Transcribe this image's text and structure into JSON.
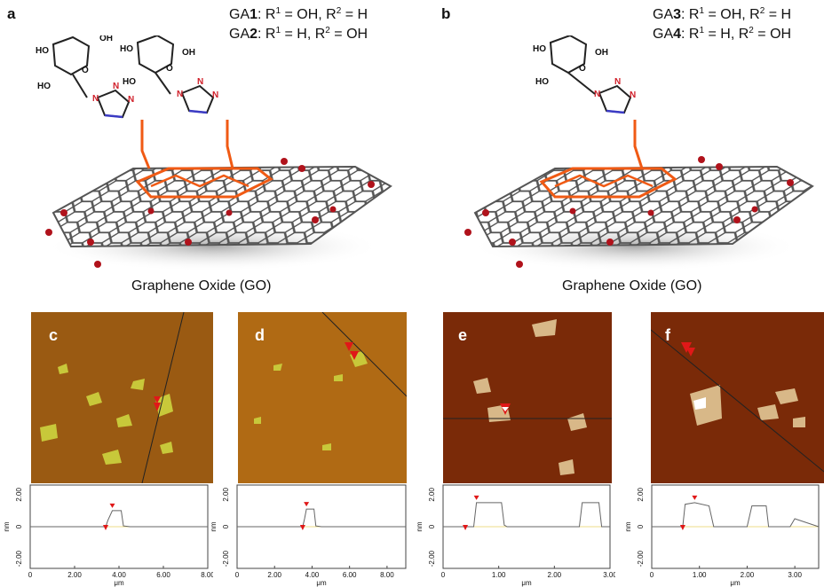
{
  "panels": {
    "a": {
      "letter": "a",
      "formula_1": {
        "prefix": "GA",
        "num": "1",
        "text": ": R",
        "s1": "1",
        "mid": " = OH, R",
        "s2": "2",
        "end": " = H"
      },
      "formula_2": {
        "prefix": "GA",
        "num": "2",
        "text": ": R",
        "s1": "1",
        "mid": " = H, R",
        "s2": "2",
        "end": " = OH"
      },
      "go_label": "Graphene Oxide (GO)"
    },
    "b": {
      "letter": "b",
      "formula_1": {
        "prefix": "GA",
        "num": "3",
        "text": ": R",
        "s1": "1",
        "mid": " = OH, R",
        "s2": "2",
        "end": " = H"
      },
      "formula_2": {
        "prefix": "GA",
        "num": "4",
        "text": ": R",
        "s1": "1",
        "mid": " = H, R",
        "s2": "2",
        "end": " = OH"
      },
      "go_label": "Graphene Oxide (GO)"
    }
  },
  "chem_labels": {
    "ho": "HO",
    "oh": "OH",
    "o": "O",
    "n": "N",
    "r1": "R",
    "r1sup": "1",
    "r2": "R",
    "r2sup": "2"
  },
  "afm_panels": [
    {
      "letter": "c",
      "bg": "#9a5a12",
      "flake": "#c8c83a"
    },
    {
      "letter": "d",
      "bg": "#b06a14",
      "flake": "#c8c83a"
    },
    {
      "letter": "e",
      "bg": "#7a2a08",
      "flake": "#d8b888"
    },
    {
      "letter": "f",
      "bg": "#7a2a08",
      "flake": "#d8b888"
    }
  ],
  "chart_data": [
    {
      "type": "line",
      "panel": "c",
      "ylabel": "nm",
      "xlabel": "μm",
      "yticks": [
        "2.00",
        "0",
        "-2.00"
      ],
      "xticks": [
        "0",
        "2.00",
        "4.00",
        "6.00",
        "8.00"
      ],
      "xlim": [
        0,
        8
      ],
      "ylim": [
        -2.6,
        2.6
      ],
      "x": [
        0,
        1,
        2,
        3,
        3.4,
        3.5,
        3.7,
        4.1,
        4.2,
        4.5,
        5,
        6,
        7,
        8
      ],
      "y": [
        0,
        0,
        0,
        0,
        0,
        0.4,
        1.0,
        1.0,
        0.05,
        0,
        0,
        0,
        0,
        0
      ]
    },
    {
      "type": "line",
      "panel": "d",
      "ylabel": "nm",
      "xlabel": "μm",
      "yticks": [
        "2.00",
        "0",
        "-2.00"
      ],
      "xticks": [
        "0",
        "2.00",
        "4.00",
        "6.00",
        "8.00"
      ],
      "xlim": [
        0,
        9
      ],
      "ylim": [
        -2.6,
        2.6
      ],
      "x": [
        0,
        1,
        2,
        3,
        3.5,
        3.6,
        3.7,
        4.1,
        4.2,
        4.5,
        5,
        6,
        7,
        8,
        9
      ],
      "y": [
        0,
        0,
        0,
        0,
        0,
        0.5,
        1.1,
        1.1,
        0.05,
        0,
        0,
        0,
        0,
        0,
        0
      ]
    },
    {
      "type": "line",
      "panel": "e",
      "ylabel": "nm",
      "xlabel": "μm",
      "yticks": [
        "2.00",
        "0",
        "-2.00"
      ],
      "xticks": [
        "0",
        "1.00",
        "2.00",
        "3.00"
      ],
      "xlim": [
        0,
        3
      ],
      "ylim": [
        -2.6,
        2.6
      ],
      "x": [
        0,
        0.4,
        0.55,
        0.6,
        1.05,
        1.1,
        1.15,
        1.5,
        2.0,
        2.45,
        2.5,
        2.8,
        2.85,
        3.0
      ],
      "y": [
        0,
        0,
        0,
        1.5,
        1.5,
        0.1,
        0,
        0,
        0,
        0,
        1.5,
        1.5,
        0,
        0
      ]
    },
    {
      "type": "line",
      "panel": "f",
      "ylabel": "nm",
      "xlabel": "μm",
      "yticks": [
        "2.00",
        "0",
        "-2.00"
      ],
      "xticks": [
        "0",
        "1.00",
        "2.00",
        "3.00"
      ],
      "xlim": [
        0,
        3.5
      ],
      "ylim": [
        -2.6,
        2.6
      ],
      "x": [
        0,
        0.5,
        0.65,
        0.7,
        0.9,
        1.2,
        1.3,
        1.6,
        2.0,
        2.1,
        2.4,
        2.45,
        2.9,
        3.0,
        3.5
      ],
      "y": [
        0,
        0,
        0,
        1.4,
        1.5,
        1.3,
        0,
        0,
        0,
        1.3,
        1.3,
        0,
        0,
        0.5,
        0
      ]
    }
  ]
}
